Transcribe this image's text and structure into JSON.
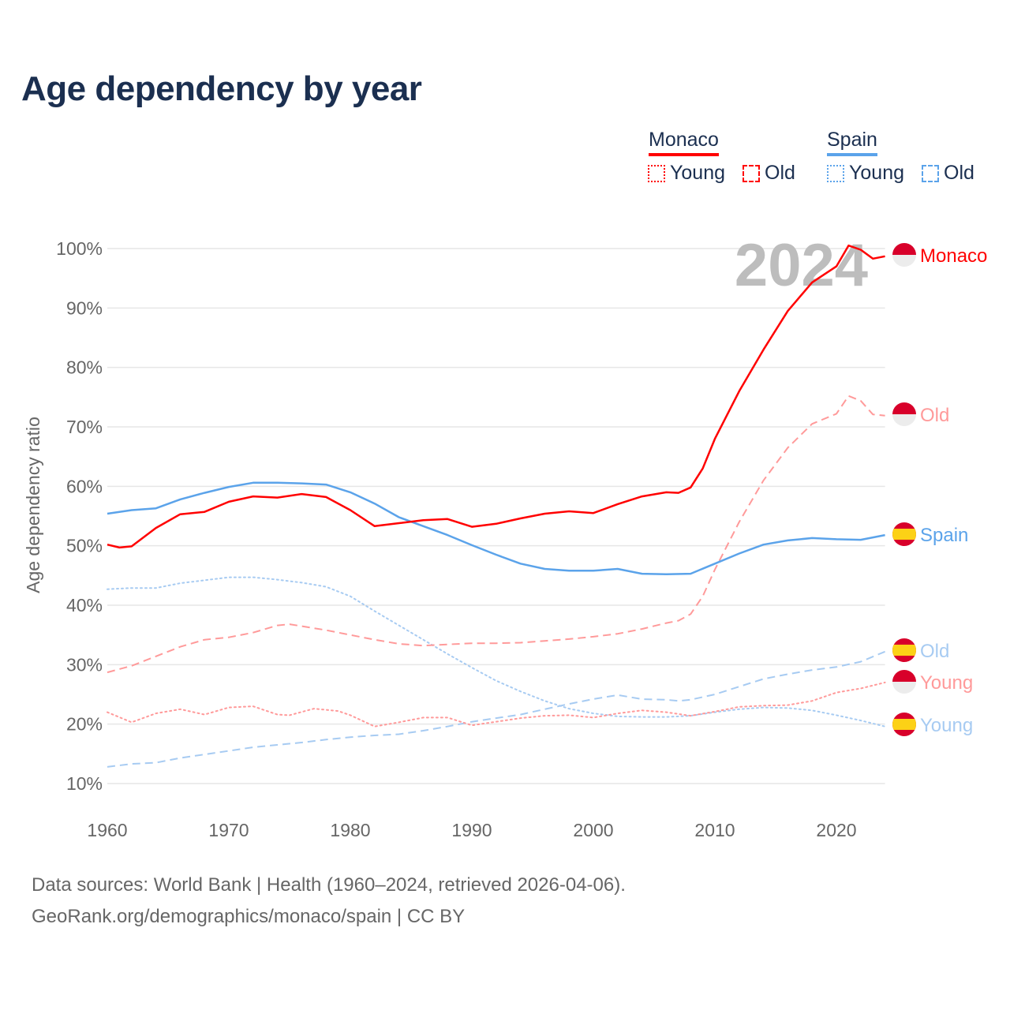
{
  "title": "Age dependency by year",
  "legend": {
    "groups": [
      {
        "name": "Monaco",
        "color": "#ff0000",
        "light": "#ff9a9a",
        "items": [
          "Young",
          "Old"
        ]
      },
      {
        "name": "Spain",
        "color": "#5ba3ea",
        "light": "#a7cbf2",
        "items": [
          "Young",
          "Old"
        ]
      }
    ]
  },
  "footer": {
    "line1": "Data sources: World Bank | Health (1960–2024, retrieved 2026-04-06).",
    "line2": "GeoRank.org/demographics/monaco/spain | CC BY"
  },
  "chart_data": {
    "type": "line",
    "title": "Age dependency by year",
    "xlabel": "",
    "ylabel": "Age dependency ratio",
    "xlim": [
      1960,
      2024
    ],
    "ylim": [
      10,
      100
    ],
    "xticks": [
      "1960",
      "1970",
      "1980",
      "1990",
      "2000",
      "2010",
      "2020"
    ],
    "yticks": [
      "10%",
      "20%",
      "30%",
      "40%",
      "50%",
      "60%",
      "70%",
      "80%",
      "90%",
      "100%"
    ],
    "year_watermark": "2024",
    "grid": true,
    "series": [
      {
        "name": "Monaco",
        "label": "Monaco",
        "country": "Monaco",
        "style": "solid",
        "color": "#ff0000",
        "x": [
          1960,
          1961,
          1962,
          1964,
          1966,
          1968,
          1970,
          1972,
          1974,
          1976,
          1978,
          1980,
          1982,
          1984,
          1986,
          1988,
          1990,
          1992,
          1994,
          1996,
          1998,
          2000,
          2002,
          2004,
          2006,
          2007,
          2008,
          2009,
          2010,
          2012,
          2014,
          2016,
          2018,
          2020,
          2021,
          2022,
          2023,
          2024
        ],
        "y": [
          50.2,
          49.7,
          49.9,
          53,
          55.3,
          55.7,
          57.4,
          58.3,
          58.1,
          58.7,
          58.2,
          56,
          53.3,
          53.8,
          54.3,
          54.5,
          53.2,
          53.7,
          54.6,
          55.4,
          55.8,
          55.5,
          57,
          58.3,
          59,
          58.9,
          59.8,
          63,
          68,
          76,
          83,
          89.5,
          94.3,
          97,
          100.5,
          99.8,
          98.3,
          98.7
        ]
      },
      {
        "name": "Monaco Old",
        "label": "Old",
        "country": "Monaco",
        "style": "dashed",
        "color": "#ff9a9a",
        "x": [
          1960,
          1962,
          1964,
          1966,
          1968,
          1970,
          1972,
          1974,
          1975,
          1978,
          1980,
          1982,
          1984,
          1986,
          1988,
          1990,
          1992,
          1994,
          1996,
          1998,
          2000,
          2002,
          2004,
          2006,
          2007,
          2008,
          2009,
          2010,
          2012,
          2014,
          2016,
          2018,
          2020,
          2021,
          2022,
          2023,
          2024
        ],
        "y": [
          28.7,
          29.8,
          31.4,
          33,
          34.2,
          34.6,
          35.4,
          36.6,
          36.8,
          35.8,
          35,
          34.2,
          33.5,
          33.2,
          33.4,
          33.6,
          33.6,
          33.7,
          34,
          34.3,
          34.7,
          35.2,
          36,
          37,
          37.4,
          38.5,
          41.5,
          46,
          54,
          61,
          66.5,
          70.5,
          72.2,
          75.2,
          74.4,
          72.1,
          71.9
        ]
      },
      {
        "name": "Monaco Young",
        "label": "Young",
        "country": "Monaco",
        "style": "dotted",
        "color": "#ff9a9a",
        "x": [
          1960,
          1962,
          1964,
          1966,
          1968,
          1970,
          1972,
          1974,
          1975,
          1977,
          1979,
          1980,
          1982,
          1984,
          1986,
          1988,
          1990,
          1992,
          1994,
          1996,
          1998,
          2000,
          2002,
          2004,
          2006,
          2008,
          2010,
          2012,
          2014,
          2016,
          2018,
          2020,
          2022,
          2024
        ],
        "y": [
          22,
          20.3,
          21.8,
          22.5,
          21.6,
          22.8,
          23,
          21.6,
          21.5,
          22.6,
          22.2,
          21.5,
          19.6,
          20.3,
          21.1,
          21.1,
          19.8,
          20.4,
          21,
          21.4,
          21.5,
          21.1,
          21.8,
          22.3,
          22,
          21.4,
          22.1,
          22.9,
          23.1,
          23.2,
          23.9,
          25.3,
          26,
          27
        ]
      },
      {
        "name": "Spain",
        "label": "Spain",
        "country": "Spain",
        "style": "solid",
        "color": "#5ba3ea",
        "x": [
          1960,
          1962,
          1964,
          1966,
          1968,
          1970,
          1972,
          1974,
          1976,
          1978,
          1980,
          1982,
          1984,
          1986,
          1988,
          1990,
          1992,
          1994,
          1996,
          1998,
          2000,
          2002,
          2004,
          2006,
          2008,
          2010,
          2012,
          2014,
          2016,
          2018,
          2020,
          2022,
          2024
        ],
        "y": [
          55.4,
          56,
          56.3,
          57.8,
          58.9,
          59.9,
          60.6,
          60.6,
          60.5,
          60.3,
          59,
          57.1,
          54.8,
          53.3,
          51.8,
          50.1,
          48.5,
          47,
          46.1,
          45.8,
          45.8,
          46.1,
          45.3,
          45.2,
          45.3,
          47,
          48.7,
          50.2,
          50.9,
          51.3,
          51.1,
          51,
          51.8
        ]
      },
      {
        "name": "Spain Old",
        "label": "Old",
        "country": "Spain",
        "style": "dashed",
        "color": "#a7cbf2",
        "x": [
          1960,
          1962,
          1964,
          1966,
          1968,
          1970,
          1972,
          1974,
          1976,
          1978,
          1980,
          1982,
          1984,
          1986,
          1988,
          1990,
          1992,
          1994,
          1996,
          1998,
          2000,
          2002,
          2004,
          2006,
          2007,
          2008,
          2010,
          2012,
          2014,
          2016,
          2018,
          2020,
          2022,
          2024
        ],
        "y": [
          12.8,
          13.3,
          13.5,
          14.3,
          14.9,
          15.5,
          16.1,
          16.5,
          16.9,
          17.4,
          17.8,
          18.1,
          18.3,
          18.9,
          19.6,
          20.4,
          21,
          21.6,
          22.5,
          23.4,
          24.2,
          24.9,
          24.2,
          24.1,
          23.9,
          24.1,
          25,
          26.3,
          27.6,
          28.4,
          29.1,
          29.6,
          30.5,
          32.2
        ]
      },
      {
        "name": "Spain Young",
        "label": "Young",
        "country": "Spain",
        "style": "dotted",
        "color": "#a7cbf2",
        "x": [
          1960,
          1962,
          1964,
          1966,
          1968,
          1970,
          1972,
          1974,
          1976,
          1978,
          1980,
          1982,
          1984,
          1986,
          1988,
          1990,
          1992,
          1994,
          1996,
          1998,
          2000,
          2002,
          2004,
          2006,
          2008,
          2010,
          2012,
          2014,
          2016,
          2018,
          2020,
          2022,
          2024
        ],
        "y": [
          42.7,
          42.9,
          42.9,
          43.7,
          44.2,
          44.7,
          44.7,
          44.3,
          43.8,
          43.1,
          41.5,
          39,
          36.6,
          34.2,
          31.8,
          29.5,
          27.3,
          25.5,
          23.9,
          22.6,
          21.8,
          21.3,
          21.2,
          21.2,
          21.4,
          22,
          22.5,
          22.8,
          22.7,
          22.3,
          21.5,
          20.6,
          19.6
        ]
      }
    ]
  }
}
